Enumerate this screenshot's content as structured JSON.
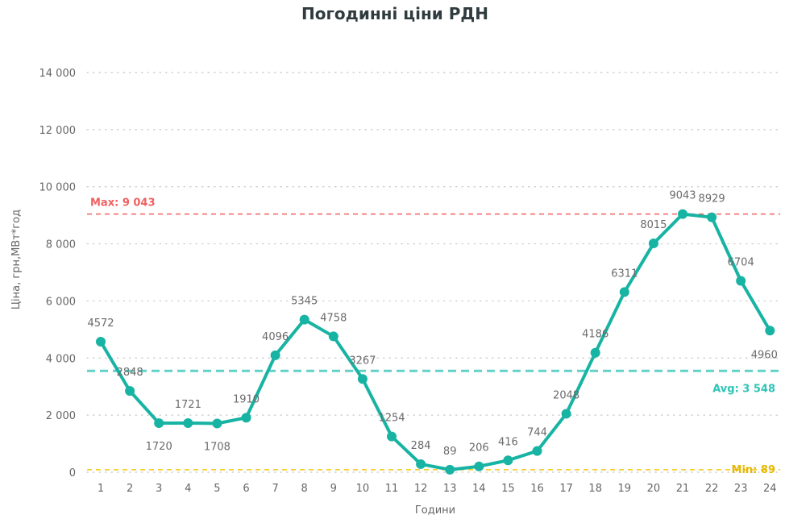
{
  "chart_data": {
    "type": "line",
    "title": "Погодинні ціни РДН",
    "xlabel": "Години",
    "ylabel": "Ціна, грн,МВт*год",
    "ylim": [
      0,
      14000
    ],
    "yticks": [
      0,
      2000,
      4000,
      6000,
      8000,
      10000,
      12000,
      14000
    ],
    "ytick_labels": [
      "0",
      "2 000",
      "4 000",
      "6 000",
      "8 000",
      "10 000",
      "12 000",
      "14 000"
    ],
    "grid": true,
    "x": [
      1,
      2,
      3,
      4,
      5,
      6,
      7,
      8,
      9,
      10,
      11,
      12,
      13,
      14,
      15,
      16,
      17,
      18,
      19,
      20,
      21,
      22,
      23,
      24
    ],
    "series": [
      {
        "values": [
          4572,
          2848,
          1720,
          1721,
          1708,
          1910,
          4096,
          5345,
          4758,
          3267,
          1254,
          284,
          89,
          206,
          416,
          744,
          2048,
          4186,
          6311,
          8015,
          9043,
          8929,
          6704,
          4960
        ],
        "color": "#17b3a3"
      }
    ],
    "reference_lines": [
      {
        "label": "Max: 9 043",
        "value": 9043,
        "color": "#f06060"
      },
      {
        "label": "Avg: 3 548",
        "value": 3548,
        "color": "#2ec4b6"
      },
      {
        "label": "Min: 89",
        "value": 89,
        "color": "#f2c811"
      }
    ]
  }
}
